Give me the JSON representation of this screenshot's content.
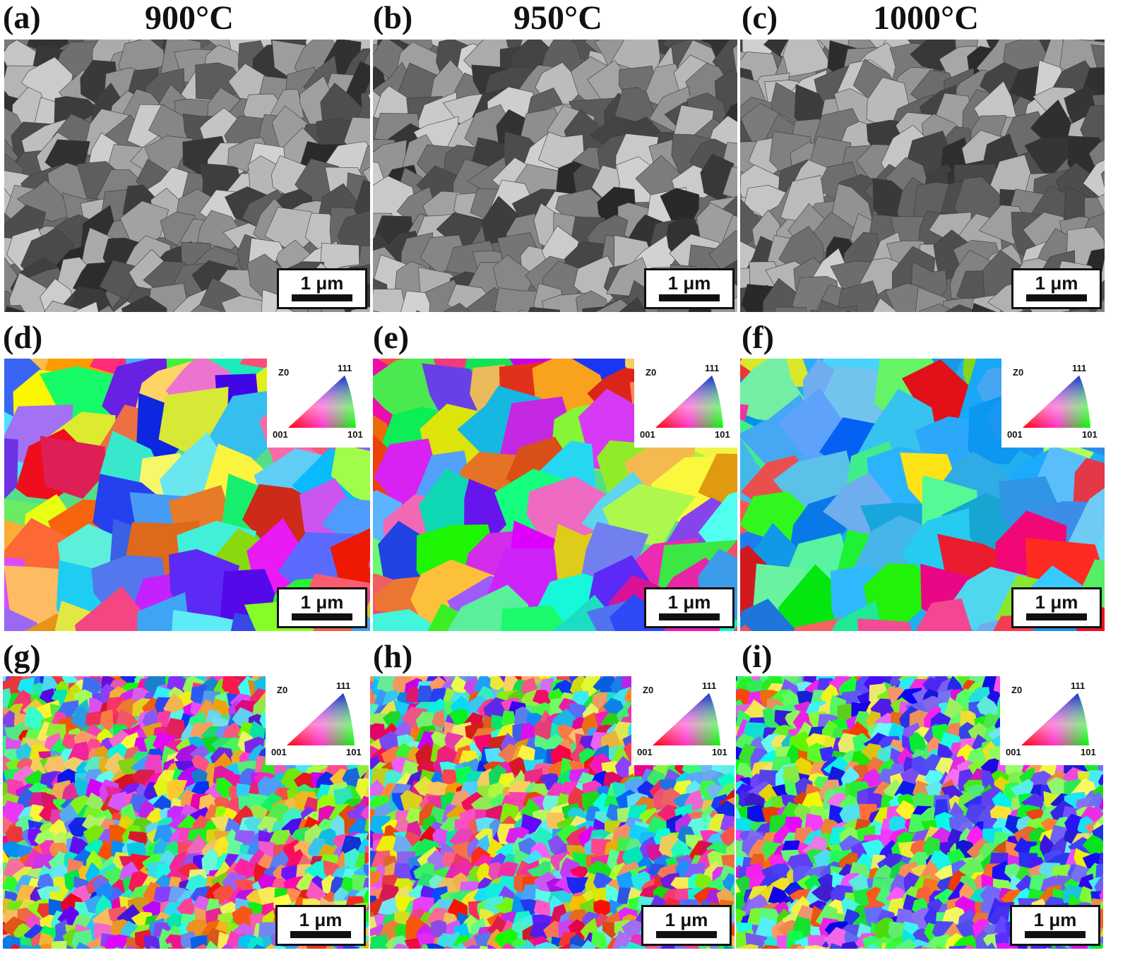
{
  "panels": [
    {
      "label": "(a)",
      "title": "900°C",
      "type": "sem",
      "scale": "1 μm",
      "seed": 11,
      "mode": "gray"
    },
    {
      "label": "(b)",
      "title": "950°C",
      "type": "sem",
      "scale": "1 μm",
      "seed": 23,
      "mode": "gray"
    },
    {
      "label": "(c)",
      "title": "1000°C",
      "type": "sem",
      "scale": "1 μm",
      "seed": 37,
      "mode": "gray"
    },
    {
      "label": "(d)",
      "title": "",
      "type": "ebsd",
      "scale": "1 μm",
      "seed": 41,
      "mode": "coarse"
    },
    {
      "label": "(e)",
      "title": "",
      "type": "ebsd",
      "scale": "1 μm",
      "seed": 53,
      "mode": "coarse"
    },
    {
      "label": "(f)",
      "title": "",
      "type": "ebsd",
      "scale": "1 μm",
      "seed": 67,
      "mode": "coarse-blue"
    },
    {
      "label": "(g)",
      "title": "",
      "type": "ebsd",
      "scale": "1 μm",
      "seed": 71,
      "mode": "fine"
    },
    {
      "label": "(h)",
      "title": "",
      "type": "ebsd",
      "scale": "1 μm",
      "seed": 83,
      "mode": "fine"
    },
    {
      "label": "(i)",
      "title": "",
      "type": "ebsd",
      "scale": "1 μm",
      "seed": 97,
      "mode": "fine-blue"
    }
  ],
  "ipf_legend": {
    "axis": "Z0",
    "corner_001": "001",
    "corner_101": "101",
    "corner_111": "111"
  },
  "colors": {
    "ipf_001": "#ff0000",
    "ipf_101": "#00ff00",
    "ipf_111": "#0000ff"
  }
}
